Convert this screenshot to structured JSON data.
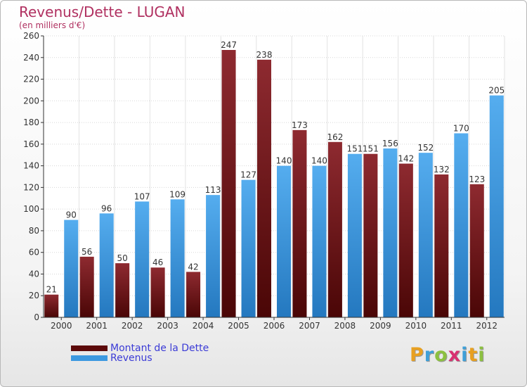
{
  "title": "Revenus/Dette - LUGAN",
  "subtitle": "(en milliers d'€)",
  "logo_text": "Proxiti",
  "chart_data": {
    "type": "bar",
    "categories": [
      "2000",
      "2001",
      "2002",
      "2003",
      "2004",
      "2005",
      "2006",
      "2007",
      "2008",
      "2009",
      "2010",
      "2011",
      "2012"
    ],
    "series": [
      {
        "name": "Montant de la Dette",
        "color": "#7a1a1f",
        "values": [
          21,
          56,
          50,
          46,
          42,
          247,
          238,
          173,
          162,
          151,
          142,
          132,
          123
        ]
      },
      {
        "name": "Revenus",
        "color": "#3d99e0",
        "values": [
          90,
          96,
          107,
          109,
          113,
          127,
          140,
          140,
          151,
          156,
          152,
          170,
          205
        ]
      }
    ],
    "ylim": [
      0,
      260
    ],
    "yticks": [
      0,
      20,
      40,
      60,
      80,
      100,
      120,
      140,
      160,
      180,
      200,
      220,
      240,
      260
    ],
    "grid": true,
    "legend_position": "bottom-left"
  },
  "legend": [
    {
      "label": "Montant de la Dette",
      "color": "#5c0a0a"
    },
    {
      "label": "Revenus",
      "color": "#3d99e0"
    }
  ]
}
